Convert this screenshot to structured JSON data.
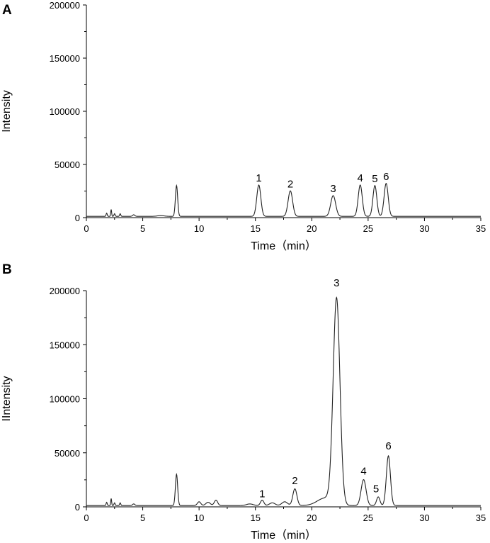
{
  "panel_letters": {
    "a": "A",
    "b": "B"
  },
  "chart_data": [
    {
      "type": "line",
      "panel": "A",
      "xlabel": "Time（min）",
      "ylabel": "Intensity",
      "xlim": [
        0,
        35
      ],
      "ylim": [
        0,
        200000
      ],
      "xticks": [
        0,
        5,
        10,
        15,
        20,
        25,
        30,
        35
      ],
      "yticks": [
        0,
        50000,
        100000,
        150000,
        200000
      ],
      "grid": false,
      "baseline": 1200,
      "peaks": [
        {
          "x": 1.8,
          "h": 3000,
          "w": 0.05
        },
        {
          "x": 2.2,
          "h": 6500,
          "w": 0.04
        },
        {
          "x": 2.5,
          "h": 2500,
          "w": 0.05
        },
        {
          "x": 3.0,
          "h": 2500,
          "w": 0.05
        },
        {
          "x": 4.2,
          "h": 1500,
          "w": 0.1
        },
        {
          "x": 6.6,
          "h": 700,
          "w": 0.3
        },
        {
          "x": 8.0,
          "h": 29000,
          "w": 0.1
        },
        {
          "x": 15.3,
          "h": 29500,
          "w": 0.18
        },
        {
          "x": 18.1,
          "h": 24000,
          "w": 0.2
        },
        {
          "x": 21.9,
          "h": 19500,
          "w": 0.22
        },
        {
          "x": 24.3,
          "h": 29500,
          "w": 0.18
        },
        {
          "x": 25.6,
          "h": 29000,
          "w": 0.17
        },
        {
          "x": 26.6,
          "h": 31000,
          "w": 0.18
        }
      ],
      "annotations": [
        {
          "label": "1",
          "x": 15.3,
          "y": 34000
        },
        {
          "label": "2",
          "x": 18.1,
          "y": 28500
        },
        {
          "label": "3",
          "x": 21.9,
          "y": 24000
        },
        {
          "label": "4",
          "x": 24.3,
          "y": 34000
        },
        {
          "label": "5",
          "x": 25.6,
          "y": 33500
        },
        {
          "label": "6",
          "x": 26.6,
          "y": 35500
        }
      ]
    },
    {
      "type": "line",
      "panel": "B",
      "xlabel": "Time（min）",
      "ylabel": "IIntensity",
      "xlim": [
        0,
        35
      ],
      "ylim": [
        0,
        200000
      ],
      "xticks": [
        0,
        5,
        10,
        15,
        20,
        25,
        30,
        35
      ],
      "yticks": [
        0,
        50000,
        100000,
        150000,
        200000
      ],
      "grid": false,
      "baseline": 1200,
      "peaks": [
        {
          "x": 1.8,
          "h": 3000,
          "w": 0.05
        },
        {
          "x": 2.2,
          "h": 6500,
          "w": 0.04
        },
        {
          "x": 2.5,
          "h": 2500,
          "w": 0.05
        },
        {
          "x": 3.0,
          "h": 2500,
          "w": 0.05
        },
        {
          "x": 4.2,
          "h": 1500,
          "w": 0.1
        },
        {
          "x": 8.0,
          "h": 29000,
          "w": 0.1
        },
        {
          "x": 10.0,
          "h": 3500,
          "w": 0.15
        },
        {
          "x": 10.8,
          "h": 3000,
          "w": 0.2
        },
        {
          "x": 11.5,
          "h": 5000,
          "w": 0.15
        },
        {
          "x": 14.5,
          "h": 1500,
          "w": 0.3
        },
        {
          "x": 15.6,
          "h": 5000,
          "w": 0.15
        },
        {
          "x": 16.5,
          "h": 2500,
          "w": 0.25
        },
        {
          "x": 17.6,
          "h": 3500,
          "w": 0.25
        },
        {
          "x": 18.5,
          "h": 15500,
          "w": 0.18
        },
        {
          "x": 21.2,
          "h": 7000,
          "w": 0.7
        },
        {
          "x": 22.2,
          "h": 190000,
          "w": 0.3
        },
        {
          "x": 24.6,
          "h": 24000,
          "w": 0.22
        },
        {
          "x": 25.9,
          "h": 8000,
          "w": 0.15
        },
        {
          "x": 26.8,
          "h": 46000,
          "w": 0.18
        }
      ],
      "annotations": [
        {
          "label": "1",
          "x": 15.6,
          "y": 9000
        },
        {
          "label": "2",
          "x": 18.5,
          "y": 21000
        },
        {
          "label": "3",
          "x": 22.2,
          "y": 204000
        },
        {
          "label": "4",
          "x": 24.6,
          "y": 30000
        },
        {
          "label": "5",
          "x": 25.7,
          "y": 13500
        },
        {
          "label": "6",
          "x": 26.8,
          "y": 53000
        }
      ]
    }
  ]
}
